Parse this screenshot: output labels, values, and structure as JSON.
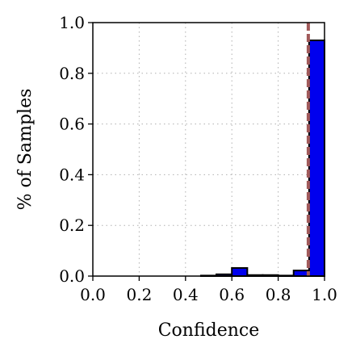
{
  "chart_data": {
    "type": "bar",
    "title": "",
    "xlabel": "Confidence",
    "ylabel": "% of Samples",
    "xlim": [
      0.0,
      1.0
    ],
    "ylim": [
      0.0,
      1.0
    ],
    "grid": true,
    "x_ticks": [
      "0.0",
      "0.2",
      "0.4",
      "0.6",
      "0.8",
      "1.0"
    ],
    "y_ticks": [
      "0.0",
      "0.2",
      "0.4",
      "0.6",
      "0.8",
      "1.0"
    ],
    "bin_width": 0.0667,
    "bins": [
      {
        "x0": 0.4667,
        "value": 0.002
      },
      {
        "x0": 0.5333,
        "value": 0.007
      },
      {
        "x0": 0.6,
        "value": 0.032
      },
      {
        "x0": 0.6667,
        "value": 0.004
      },
      {
        "x0": 0.7333,
        "value": 0.004
      },
      {
        "x0": 0.8,
        "value": 0.002
      },
      {
        "x0": 0.8667,
        "value": 0.022
      },
      {
        "x0": 0.9333,
        "value": 0.93
      }
    ],
    "mean_confidence_line": 0.93,
    "colors": {
      "bar_fill": "#0000ee",
      "bar_edge": "#000000",
      "mean_line": "#a15a5a"
    }
  }
}
